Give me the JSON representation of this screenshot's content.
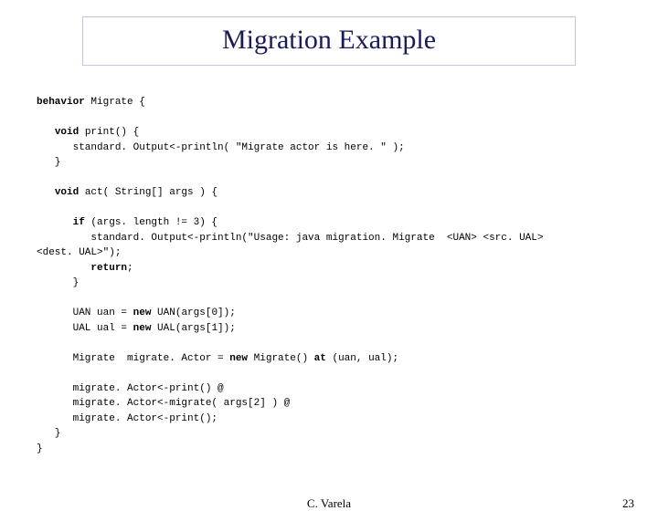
{
  "title": "Migration Example",
  "code": {
    "l1_kw": "behavior",
    "l1_rest": " Migrate {",
    "l2_kw": "void",
    "l2_rest": " print() {",
    "l3": "      standard. Output<-println( \"Migrate actor is here. \" );",
    "l4": "   }",
    "l5_kw": "void",
    "l5_rest": " act( String[] args ) {",
    "l6_kw1": "if",
    "l6_mid1": " (args. length != 3) {",
    "l7": "         standard. Output<-println(\"Usage: java migration. Migrate  <UAN> <src. UAL> ",
    "l7b": "<dest. UAL>\");",
    "l8_kw": "return",
    "l8_rest": ";",
    "l9": "      }",
    "l10a": "      UAN uan = ",
    "l10_kw": "new",
    "l10b": " UAN(args[0]);",
    "l11a": "      UAL ual = ",
    "l11_kw": "new",
    "l11b": " UAL(args[1]);",
    "l12a": "      Migrate  migrate. Actor = ",
    "l12_kw1": "new",
    "l12b": " Migrate() ",
    "l12_kw2": "at",
    "l12c": " (uan, ual);",
    "l13": "      migrate. Actor<-print() @",
    "l14": "      migrate. Actor<-migrate( args[2] ) @",
    "l15": "      migrate. Actor<-print();",
    "l16": "   }",
    "l17": "}"
  },
  "footer": {
    "center": "C. Varela",
    "page": "23"
  }
}
